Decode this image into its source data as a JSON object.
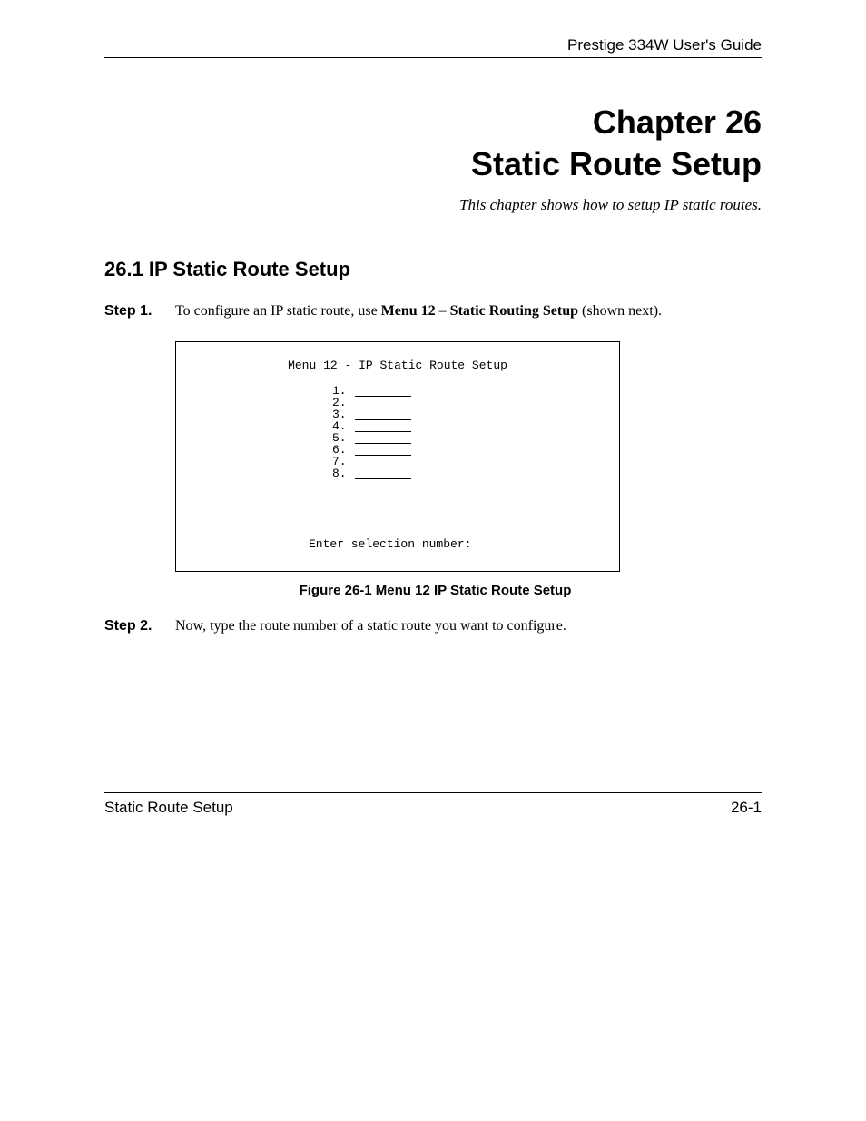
{
  "header": {
    "guide_title": "Prestige 334W User's Guide"
  },
  "chapter": {
    "number_line": "Chapter 26",
    "title_line": "Static Route Setup",
    "subtitle": "This chapter shows how to setup IP static routes."
  },
  "section": {
    "heading": "26.1  IP Static Route Setup"
  },
  "steps": {
    "step1": {
      "label": "Step 1.",
      "prefix": "To configure an IP static route, use ",
      "bold1": "Menu 12",
      "mid": " – ",
      "bold2": "Static Routing Setup",
      "suffix": " (shown next)."
    },
    "step2": {
      "label": "Step 2.",
      "text": "Now, type the route number of a static route you want to configure."
    }
  },
  "menu_box": {
    "title": "Menu 12 - IP Static Route Setup",
    "items": [
      "1.",
      "2.",
      "3.",
      "4.",
      "5.",
      "6.",
      "7.",
      "8."
    ],
    "prompt": "Enter selection number:"
  },
  "figure": {
    "caption": "Figure 26-1 Menu 12 IP Static Route Setup"
  },
  "footer": {
    "left": "Static Route Setup",
    "right": "26-1"
  },
  "colors": {
    "text": "#000000",
    "background": "#ffffff",
    "border": "#000000"
  },
  "fonts": {
    "serif": "Georgia, Times New Roman, serif",
    "sans": "Arial, Helvetica, sans-serif",
    "mono": "Courier New, Courier, monospace"
  }
}
